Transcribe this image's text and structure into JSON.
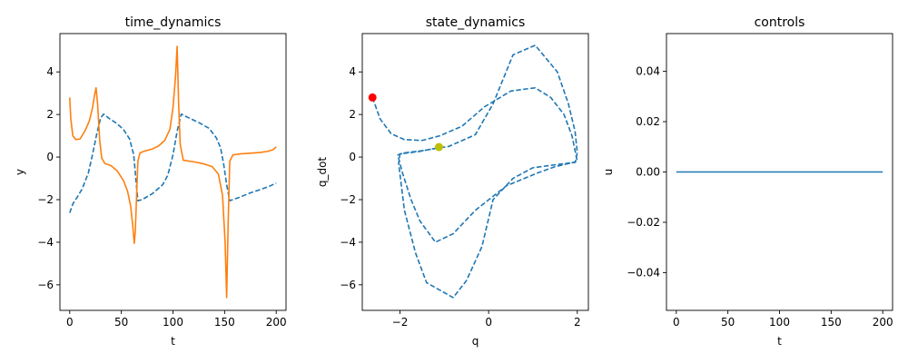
{
  "chart_data": [
    {
      "type": "line",
      "title": "time_dynamics",
      "xlabel": "t",
      "ylabel": "y",
      "xlim": [
        -9.5,
        209.5
      ],
      "ylim": [
        -7.2,
        5.8
      ],
      "xticks": [
        0,
        50,
        100,
        150,
        200
      ],
      "yticks": [
        -6,
        -4,
        -2,
        0,
        2,
        4
      ],
      "grid": false,
      "series": [
        {
          "color": "#1f77b4",
          "style": "dashed",
          "points": [
            [
              0,
              -2.62
            ],
            [
              3,
              -2.2
            ],
            [
              7,
              -1.9
            ],
            [
              12,
              -1.5
            ],
            [
              18,
              -0.75
            ],
            [
              22,
              0.1
            ],
            [
              26,
              1.05
            ],
            [
              30,
              1.85
            ],
            [
              33,
              2.02
            ],
            [
              38,
              1.82
            ],
            [
              45,
              1.6
            ],
            [
              52,
              1.3
            ],
            [
              58,
              0.85
            ],
            [
              62,
              0.1
            ],
            [
              64,
              -1.0
            ],
            [
              66,
              -2.05
            ],
            [
              70,
              -2.0
            ],
            [
              80,
              -1.72
            ],
            [
              90,
              -1.3
            ],
            [
              95,
              -0.85
            ],
            [
              100,
              0.1
            ],
            [
              104,
              1.2
            ],
            [
              108,
              2.02
            ],
            [
              115,
              1.85
            ],
            [
              125,
              1.62
            ],
            [
              135,
              1.35
            ],
            [
              142,
              0.9
            ],
            [
              146,
              0.45
            ],
            [
              149,
              -0.3
            ],
            [
              152,
              -1.3
            ],
            [
              155,
              -2.05
            ],
            [
              165,
              -1.88
            ],
            [
              175,
              -1.68
            ],
            [
              185,
              -1.52
            ],
            [
              193,
              -1.38
            ],
            [
              200,
              -1.22
            ]
          ]
        },
        {
          "color": "#ff7f0e",
          "style": "solid",
          "points": [
            [
              0,
              2.8
            ],
            [
              1,
              1.8
            ],
            [
              3,
              1.0
            ],
            [
              6,
              0.82
            ],
            [
              10,
              0.85
            ],
            [
              15,
              1.25
            ],
            [
              19,
              1.7
            ],
            [
              22,
              2.3
            ],
            [
              24,
              2.9
            ],
            [
              25.5,
              3.25
            ],
            [
              27,
              2.5
            ],
            [
              29,
              0.8
            ],
            [
              31,
              -0.05
            ],
            [
              34,
              -0.3
            ],
            [
              40,
              -0.4
            ],
            [
              46,
              -0.65
            ],
            [
              52,
              -1.1
            ],
            [
              56,
              -1.6
            ],
            [
              59,
              -2.3
            ],
            [
              61,
              -3.2
            ],
            [
              62.5,
              -4.05
            ],
            [
              63.5,
              -3.5
            ],
            [
              65,
              -1.5
            ],
            [
              66,
              -0.2
            ],
            [
              68,
              0.2
            ],
            [
              74,
              0.3
            ],
            [
              80,
              0.38
            ],
            [
              86,
              0.52
            ],
            [
              92,
              0.78
            ],
            [
              97,
              1.3
            ],
            [
              100,
              2.3
            ],
            [
              102.5,
              3.8
            ],
            [
              104,
              5.2
            ],
            [
              105.5,
              2.5
            ],
            [
              107,
              0.6
            ],
            [
              110,
              -0.15
            ],
            [
              120,
              -0.22
            ],
            [
              130,
              -0.32
            ],
            [
              138,
              -0.45
            ],
            [
              144,
              -0.8
            ],
            [
              148,
              -1.8
            ],
            [
              150.5,
              -4.0
            ],
            [
              152,
              -6.6
            ],
            [
              153.5,
              -3.0
            ],
            [
              155,
              -0.2
            ],
            [
              158,
              0.1
            ],
            [
              165,
              0.15
            ],
            [
              175,
              0.18
            ],
            [
              185,
              0.22
            ],
            [
              192,
              0.27
            ],
            [
              197,
              0.35
            ],
            [
              200,
              0.48
            ]
          ]
        }
      ]
    },
    {
      "type": "line",
      "title": "state_dynamics",
      "xlabel": "q",
      "ylabel": "q_dot",
      "xlim": [
        -2.85,
        2.25
      ],
      "ylim": [
        -7.2,
        5.8
      ],
      "xticks": [
        -2,
        0,
        2
      ],
      "yticks": [
        -6,
        -4,
        -2,
        0,
        2,
        4
      ],
      "grid": false,
      "series": [
        {
          "color": "#1f77b4",
          "style": "dashed",
          "points": [
            [
              -2.62,
              2.8
            ],
            [
              -2.45,
              1.8
            ],
            [
              -2.2,
              1.1
            ],
            [
              -1.9,
              0.82
            ],
            [
              -1.5,
              0.78
            ],
            [
              -1.1,
              1.0
            ],
            [
              -0.6,
              1.45
            ],
            [
              -0.1,
              2.35
            ],
            [
              0.5,
              3.1
            ],
            [
              0.85,
              3.2
            ],
            [
              1.05,
              3.25
            ],
            [
              1.4,
              2.8
            ],
            [
              1.7,
              2.0
            ],
            [
              1.88,
              1.0
            ],
            [
              1.95,
              0.3
            ],
            [
              2.0,
              -0.2
            ],
            [
              1.85,
              -0.28
            ],
            [
              1.5,
              -0.45
            ],
            [
              1.1,
              -0.75
            ],
            [
              0.4,
              -1.35
            ],
            [
              -0.3,
              -2.5
            ],
            [
              -0.8,
              -3.6
            ],
            [
              -1.2,
              -4.0
            ],
            [
              -1.55,
              -3.0
            ],
            [
              -1.75,
              -2.0
            ],
            [
              -1.95,
              -0.7
            ],
            [
              -2.05,
              0.1
            ],
            [
              -1.9,
              0.2
            ],
            [
              -1.5,
              0.3
            ],
            [
              -0.9,
              0.5
            ],
            [
              -0.3,
              1.05
            ],
            [
              0.1,
              2.5
            ],
            [
              0.55,
              4.8
            ],
            [
              1.05,
              5.25
            ],
            [
              1.55,
              4.0
            ],
            [
              1.8,
              2.5
            ],
            [
              1.95,
              1.2
            ],
            [
              2.0,
              0.2
            ],
            [
              1.95,
              -0.25
            ],
            [
              1.55,
              -0.35
            ],
            [
              1.0,
              -0.5
            ],
            [
              0.55,
              -1.0
            ],
            [
              0.1,
              -2.0
            ],
            [
              -0.15,
              -4.2
            ],
            [
              -0.5,
              -5.8
            ],
            [
              -0.8,
              -6.6
            ],
            [
              -1.4,
              -5.9
            ],
            [
              -1.65,
              -4.5
            ],
            [
              -1.9,
              -2.5
            ],
            [
              -2.03,
              -0.3
            ],
            [
              -2.0,
              0.15
            ],
            [
              -1.6,
              0.25
            ],
            [
              -1.1,
              0.45
            ]
          ]
        }
      ],
      "markers": [
        {
          "name": "start",
          "color": "#ff0000",
          "x": -2.62,
          "y": 2.8
        },
        {
          "name": "end",
          "color": "#bfbf00",
          "x": -1.12,
          "y": 0.47
        }
      ]
    },
    {
      "type": "line",
      "title": "controls",
      "xlabel": "t",
      "ylabel": "u",
      "xlim": [
        -9.5,
        209.5
      ],
      "ylim": [
        -0.055,
        0.055
      ],
      "xticks": [
        0,
        50,
        100,
        150,
        200
      ],
      "yticks": [
        -0.04,
        -0.02,
        0.0,
        0.02,
        0.04
      ],
      "ytick_labels": [
        "−0.04",
        "−0.02",
        "0.00",
        "0.02",
        "0.04"
      ],
      "grid": false,
      "series": [
        {
          "color": "#1f77b4",
          "style": "solid",
          "points": [
            [
              0,
              0
            ],
            [
              200,
              0
            ]
          ]
        }
      ]
    }
  ]
}
